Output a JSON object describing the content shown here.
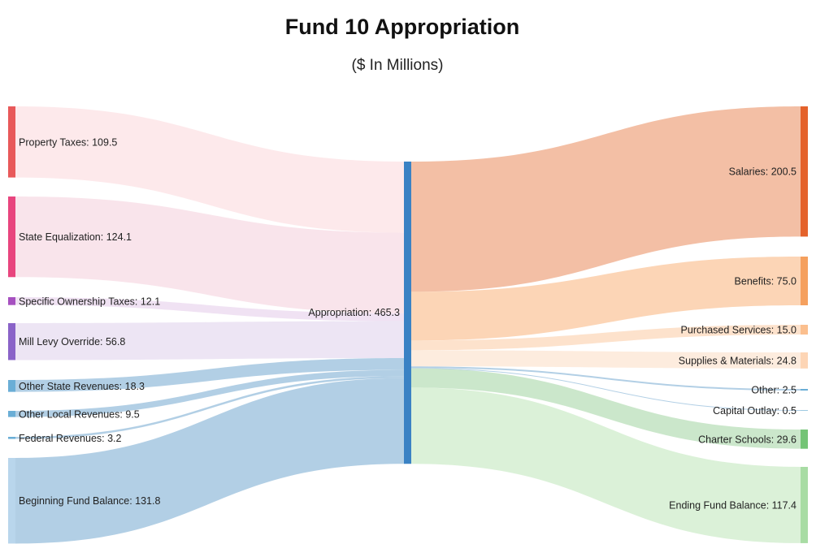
{
  "chart_data": {
    "type": "sankey",
    "title": "Fund 10 Appropriation",
    "subtitle": "($ In Millions)",
    "units": "$ millions",
    "center": {
      "name": "Appropriation",
      "value": 465.3,
      "label": "Appropriation: 465.3",
      "color": "#3a82c4"
    },
    "sources": [
      {
        "name": "Property Taxes",
        "value": 109.5,
        "label": "Property Taxes: 109.5",
        "color": "#e8595a",
        "link_color": "#fde8ea"
      },
      {
        "name": "State Equalization",
        "value": 124.1,
        "label": "State Equalization: 124.1",
        "color": "#e8457e",
        "link_color": "#f9e3ea"
      },
      {
        "name": "Specific Ownership Taxes",
        "value": 12.1,
        "label": "Specific Ownership Taxes: 12.1",
        "color": "#a650c0",
        "link_color": "#efe0f2"
      },
      {
        "name": "Mill Levy Override",
        "value": 56.8,
        "label": "Mill Levy Override: 56.8",
        "color": "#8a63c8",
        "link_color": "#ece4f3"
      },
      {
        "name": "Other State Revenues",
        "value": 18.3,
        "label": "Other State Revenues: 18.3",
        "color": "#6aaed6",
        "link_color": "#aecce4"
      },
      {
        "name": "Other Local Revenues",
        "value": 9.5,
        "label": "Other Local Revenues: 9.5",
        "color": "#6aaed6",
        "link_color": "#aecce4"
      },
      {
        "name": "Federal Revenues",
        "value": 3.2,
        "label": "Federal Revenues: 3.2",
        "color": "#6aaed6",
        "link_color": "#aecce4"
      },
      {
        "name": "Beginning Fund Balance",
        "value": 131.8,
        "label": "Beginning Fund Balance: 131.8",
        "color": "#b9d6ec",
        "link_color": "#aecce4"
      }
    ],
    "targets": [
      {
        "name": "Salaries",
        "value": 200.5,
        "label": "Salaries: 200.5",
        "color": "#e4622b",
        "link_color": "#f2bca0"
      },
      {
        "name": "Benefits",
        "value": 75.0,
        "label": "Benefits: 75.0",
        "color": "#f5a05e",
        "link_color": "#fcd3b2"
      },
      {
        "name": "Purchased Services",
        "value": 15.0,
        "label": "Purchased Services: 15.0",
        "color": "#fbbf8e",
        "link_color": "#fde0c9"
      },
      {
        "name": "Supplies & Materials",
        "value": 24.8,
        "label": "Supplies & Materials: 24.8",
        "color": "#fdd5b5",
        "link_color": "#fdebdc"
      },
      {
        "name": "Other",
        "value": 2.5,
        "label": "Other: 2.5",
        "color": "#6aaed6",
        "link_color": "#aecce4"
      },
      {
        "name": "Capital Outlay",
        "value": 0.5,
        "label": "Capital Outlay: 0.5",
        "color": "#9ecae1",
        "link_color": "#aecce4"
      },
      {
        "name": "Charter Schools",
        "value": 29.6,
        "label": "Charter Schools: 29.6",
        "color": "#74c476",
        "link_color": "#c8e6c8"
      },
      {
        "name": "Ending Fund Balance",
        "value": 117.4,
        "label": "Ending Fund Balance: 117.4",
        "color": "#a8dca4",
        "link_color": "#d9f0d6"
      }
    ]
  }
}
